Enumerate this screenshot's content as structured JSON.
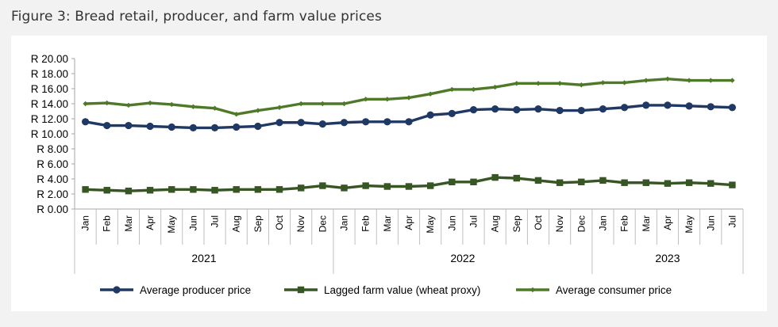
{
  "figure_title": "Figure 3: Bread retail, producer, and farm value prices",
  "chart_data": {
    "type": "line",
    "title": "Figure 3: Bread retail, producer, and farm value prices",
    "xlabel": "",
    "ylabel": "",
    "ylim": [
      0,
      20
    ],
    "y_ticks": [
      "R 0.00",
      "R 2.00",
      "R 4.00",
      "R 6.00",
      "R 8.00",
      "R 10.00",
      "R 12.00",
      "R 14.00",
      "R 16.00",
      "R 18.00",
      "R 20.00"
    ],
    "categories": [
      "Jan",
      "Feb",
      "Mar",
      "Apr",
      "May",
      "Jun",
      "Jul",
      "Aug",
      "Sep",
      "Oct",
      "Nov",
      "Dec",
      "Jan",
      "Feb",
      "Mar",
      "Apr",
      "May",
      "Jun",
      "Jul",
      "Aug",
      "Sep",
      "Oct",
      "Nov",
      "Dec",
      "Jan",
      "Feb",
      "Mar",
      "Apr",
      "May",
      "Jun",
      "Jul"
    ],
    "year_groups": [
      {
        "label": "2021",
        "count": 12
      },
      {
        "label": "2022",
        "count": 12
      },
      {
        "label": "2023",
        "count": 7
      }
    ],
    "legend_position": "bottom",
    "series": [
      {
        "name": "Average producer price",
        "color": "#1f3864",
        "marker": "circle",
        "values": [
          11.6,
          11.1,
          11.1,
          11.0,
          10.9,
          10.8,
          10.8,
          10.9,
          11.0,
          11.5,
          11.5,
          11.3,
          11.5,
          11.6,
          11.6,
          11.6,
          12.5,
          12.7,
          13.2,
          13.3,
          13.2,
          13.3,
          13.1,
          13.1,
          13.3,
          13.5,
          13.8,
          13.8,
          13.7,
          13.6,
          13.5
        ]
      },
      {
        "name": "Lagged farm value (wheat proxy)",
        "color": "#375623",
        "marker": "square",
        "values": [
          2.6,
          2.5,
          2.4,
          2.5,
          2.6,
          2.6,
          2.5,
          2.6,
          2.6,
          2.6,
          2.8,
          3.1,
          2.8,
          3.1,
          3.0,
          3.0,
          3.1,
          3.6,
          3.6,
          4.2,
          4.1,
          3.8,
          3.5,
          3.6,
          3.8,
          3.5,
          3.5,
          3.4,
          3.5,
          3.4,
          3.2
        ]
      },
      {
        "name": "Average consumer price",
        "color": "#4e7a27",
        "marker": "diamond",
        "values": [
          14.0,
          14.1,
          13.8,
          14.1,
          13.9,
          13.6,
          13.4,
          12.6,
          13.1,
          13.5,
          14.0,
          14.0,
          14.0,
          14.6,
          14.6,
          14.8,
          15.3,
          15.9,
          15.9,
          16.2,
          16.7,
          16.7,
          16.7,
          16.5,
          16.8,
          16.8,
          17.1,
          17.3,
          17.1,
          17.1,
          17.1
        ]
      }
    ]
  }
}
